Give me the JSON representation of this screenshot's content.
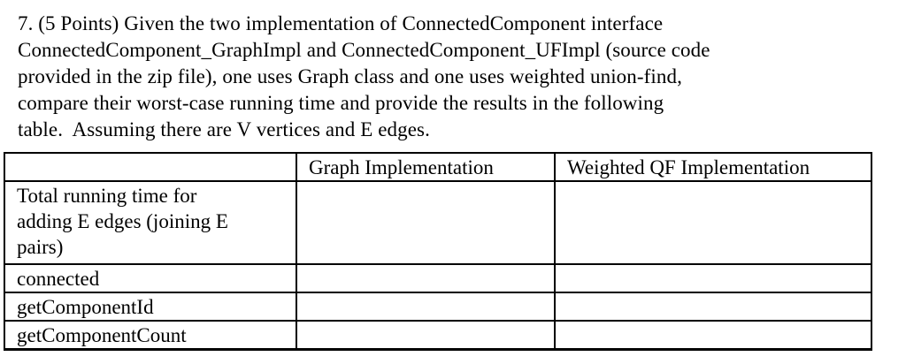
{
  "page": {
    "background": "#ffffff",
    "text_color": "#000000",
    "border_color": "#000000"
  },
  "question": {
    "number": "7",
    "points": "5 Points",
    "lines": [
      "7. (5 Points) Given the two implementation of ConnectedComponent interface",
      "ConnectedComponent_GraphImpl and ConnectedComponent_UFImpl (source code",
      "provided in the zip file), one uses Graph class and one uses weighted union-find,",
      "compare their worst-case running time and provide the results in the following",
      "table.  Assuming there are V vertices and E edges."
    ]
  },
  "table": {
    "columns": [
      "",
      "Graph Implementation",
      "Weighted QF Implementation"
    ],
    "rows": [
      {
        "label": "Total running time for adding E edges (joining E pairs)",
        "graph_impl": "",
        "weighted_qf_impl": ""
      },
      {
        "label": "connected",
        "graph_impl": "",
        "weighted_qf_impl": ""
      },
      {
        "label": "getComponentId",
        "graph_impl": "",
        "weighted_qf_impl": ""
      },
      {
        "label": "getComponentCount",
        "graph_impl": "",
        "weighted_qf_impl": ""
      }
    ]
  }
}
